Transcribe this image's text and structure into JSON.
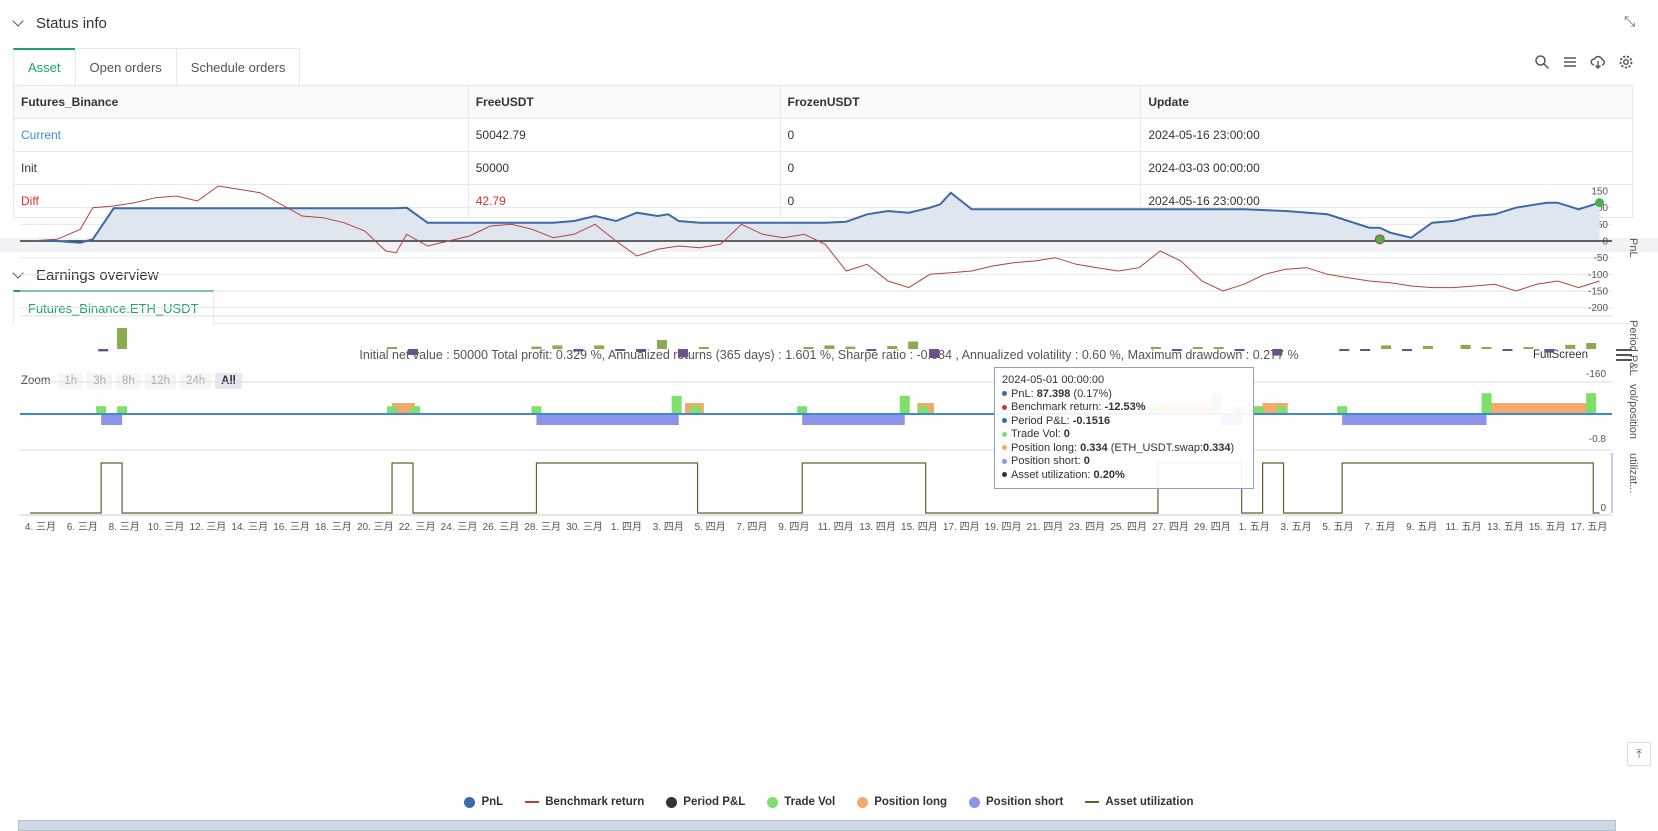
{
  "status": {
    "title": "Status info",
    "tabs": [
      "Asset",
      "Open orders",
      "Schedule orders"
    ],
    "table": {
      "headers": [
        "Futures_Binance",
        "FreeUSDT",
        "FrozenUSDT",
        "Update"
      ],
      "rows": [
        [
          "Current",
          "50042.79",
          "0",
          "2024-05-16 23:00:00"
        ],
        [
          "Init",
          "50000",
          "0",
          "2024-03-03 00:00:00"
        ],
        [
          "Diff",
          "42.79",
          "0",
          "2024-05-16 23:00:00"
        ]
      ]
    }
  },
  "earnings": {
    "title": "Earnings overview",
    "tab": "Futures_Binance.ETH_USDT",
    "summary": "Initial net value : 50000 Total profit: 0.329 %, Annualized returns (365 days) : 1.601 %, Sharpe ratio : -0.084 , Annualized volatility : 0.60 %, Maximum drawdown : 0.277 %",
    "fullscreen": "FullScreen",
    "zoom": {
      "label": "Zoom",
      "options": [
        "1h",
        "3h",
        "8h",
        "12h",
        "24h",
        "All"
      ],
      "selected": "All"
    },
    "tooltip": {
      "date": "2024-05-01 00:00:00",
      "pnl_label": "PnL: ",
      "pnl_value": "87.398",
      "pnl_extra": " (0.17%)",
      "bench_label": "Benchmark return: ",
      "bench_value": "-12.53%",
      "period_label": "Period P&L: ",
      "period_value": "-0.1516",
      "vol_label": "Trade Vol: ",
      "vol_value": "0",
      "long_label": "Position long: ",
      "long_value": "0.334",
      "long_extra": " (ETH_USDT.swap:",
      "long_extra_value": "0.334",
      "long_close": ")",
      "short_label": "Position short: ",
      "short_value": "0",
      "util_label": "Asset utilization: ",
      "util_value": "0.20%"
    },
    "legend": [
      "PnL",
      "Benchmark return",
      "Period P&L",
      "Trade Vol",
      "Position long",
      "Position short",
      "Asset utilization"
    ]
  },
  "colors": {
    "pnl": "#3c6aa6",
    "benchmark": "#b5433c",
    "period": "#333333",
    "period_pos": "#8aaa4f",
    "period_neg": "#6d4f8a",
    "vol": "#7ee06a",
    "long": "#f4a86b",
    "short": "#8e93ea",
    "util": "#6b5a2a",
    "accent": "#1aa36f"
  },
  "chart_data": {
    "type": "line",
    "x_ticks": [
      "4. 三月",
      "6. 三月",
      "8. 三月",
      "10. 三月",
      "12. 三月",
      "14. 三月",
      "16. 三月",
      "18. 三月",
      "20. 三月",
      "22. 三月",
      "24. 三月",
      "26. 三月",
      "28. 三月",
      "30. 三月",
      "1. 四月",
      "3. 四月",
      "5. 四月",
      "7. 四月",
      "9. 四月",
      "11. 四月",
      "13. 四月",
      "15. 四月",
      "17. 四月",
      "19. 四月",
      "21. 四月",
      "23. 四月",
      "25. 四月",
      "27. 四月",
      "29. 四月",
      "1. 五月",
      "3. 五月",
      "5. 五月",
      "7. 五月",
      "9. 五月",
      "11. 五月",
      "13. 五月",
      "15. 五月",
      "17. 五月"
    ],
    "pnl_axis": {
      "ticks": [
        "150",
        "100",
        "50",
        "0",
        "-50",
        "-100",
        "-150",
        "-200"
      ],
      "label": "PnL"
    },
    "period_axis": {
      "label": "Period P&L",
      "tick": "-160"
    },
    "vol_axis": {
      "label": "vol/position",
      "tick": "-0.8"
    },
    "util_axis": {
      "label": "utilizat...",
      "tick": "0"
    },
    "series": [
      {
        "name": "PnL",
        "x": [
          0,
          1.3,
          2.4,
          3.0,
          4.0,
          6,
          8,
          10,
          12,
          14,
          16,
          17,
          17.5,
          18.0,
          19,
          20,
          22,
          24,
          25,
          26,
          27,
          28,
          29,
          30,
          30.5,
          31,
          32,
          34,
          36,
          37,
          38,
          39,
          40,
          41,
          42,
          43,
          43.5,
          44,
          45,
          46,
          48,
          50,
          52,
          54,
          56,
          58,
          60,
          62,
          64,
          64.5,
          65,
          66,
          67,
          68,
          69,
          70,
          71,
          72,
          72.5,
          73,
          74,
          75
        ],
        "y": [
          0,
          0,
          -5,
          5,
          98,
          98,
          98,
          98,
          98,
          98,
          98,
          98,
          98,
          100,
          55,
          55,
          55,
          55,
          55,
          60,
          75,
          60,
          85,
          75,
          80,
          60,
          55,
          55,
          55,
          55,
          55,
          58,
          80,
          90,
          85,
          100,
          110,
          145,
          95,
          95,
          95,
          95,
          95,
          95,
          95,
          95,
          90,
          80,
          40,
          40,
          25,
          10,
          55,
          60,
          75,
          80,
          100,
          110,
          115,
          115,
          95,
          115
        ]
      },
      {
        "name": "Benchmark return",
        "x": [
          0,
          1.3,
          2.4,
          3.0,
          4.0,
          5,
          6,
          7,
          8,
          9,
          10,
          11,
          12,
          13,
          14,
          15,
          16,
          17,
          17.5,
          18,
          19,
          20,
          21,
          22,
          23,
          24,
          25,
          26,
          27,
          28,
          29,
          30,
          31,
          32,
          33,
          34,
          35,
          36,
          37,
          38,
          39,
          40,
          41,
          42,
          43,
          44,
          45,
          46,
          47,
          48,
          49,
          50,
          51,
          52,
          53,
          54,
          55,
          56,
          57,
          58,
          59,
          60,
          61,
          62,
          63,
          64,
          65,
          66,
          67,
          68,
          69,
          70,
          71,
          72,
          73,
          74,
          75
        ],
        "y": [
          0,
          5,
          35,
          100,
          105,
          115,
          130,
          135,
          120,
          165,
          155,
          145,
          110,
          75,
          70,
          55,
          30,
          -30,
          -35,
          20,
          -15,
          0,
          15,
          45,
          50,
          35,
          10,
          20,
          50,
          0,
          -45,
          -25,
          -15,
          -20,
          -10,
          50,
          20,
          10,
          20,
          -10,
          -90,
          -70,
          -120,
          -140,
          -100,
          -95,
          -90,
          -75,
          -65,
          -60,
          -50,
          -70,
          -80,
          -90,
          -80,
          -30,
          -60,
          -120,
          -150,
          -130,
          -100,
          -85,
          -80,
          -100,
          -110,
          -120,
          -125,
          -135,
          -140,
          -140,
          -135,
          -130,
          -150,
          -130,
          -120,
          -140,
          -120
        ]
      },
      {
        "name": "Period P&L",
        "bars": [
          {
            "x": 3.5,
            "v": -8
          },
          {
            "x": 4.4,
            "v": 70
          },
          {
            "x": 17.3,
            "v": 4
          },
          {
            "x": 18.3,
            "v": -20
          },
          {
            "x": 24.2,
            "v": 8
          },
          {
            "x": 25.2,
            "v": 12
          },
          {
            "x": 26.2,
            "v": -8
          },
          {
            "x": 27.2,
            "v": 12
          },
          {
            "x": 28.2,
            "v": -6
          },
          {
            "x": 29.2,
            "v": -10
          },
          {
            "x": 30.2,
            "v": 30
          },
          {
            "x": 31.2,
            "v": -28
          },
          {
            "x": 32.2,
            "v": 3
          },
          {
            "x": 37.2,
            "v": 3
          },
          {
            "x": 38.2,
            "v": 12
          },
          {
            "x": 39.2,
            "v": 8
          },
          {
            "x": 40.2,
            "v": -5
          },
          {
            "x": 41.2,
            "v": 10
          },
          {
            "x": 42.2,
            "v": 25
          },
          {
            "x": 43.2,
            "v": -30
          },
          {
            "x": 53.8,
            "v": 6
          },
          {
            "x": 54.8,
            "v": -6
          },
          {
            "x": 55.8,
            "v": 6
          },
          {
            "x": 56.8,
            "v": 3
          },
          {
            "x": 57.8,
            "v": -6
          },
          {
            "x": 59.6,
            "v": -22
          },
          {
            "x": 62.8,
            "v": -3
          },
          {
            "x": 63.8,
            "v": -5
          },
          {
            "x": 64.8,
            "v": 12
          },
          {
            "x": 65.8,
            "v": -4
          },
          {
            "x": 66.8,
            "v": 10
          },
          {
            "x": 68.6,
            "v": 14
          },
          {
            "x": 69.6,
            "v": 6
          },
          {
            "x": 70.6,
            "v": -3
          },
          {
            "x": 71.6,
            "v": 3
          },
          {
            "x": 72.6,
            "v": -12
          },
          {
            "x": 73.6,
            "v": 14
          },
          {
            "x": 74.6,
            "v": 20
          }
        ]
      },
      {
        "name": "Trade Vol",
        "bars": [
          {
            "x": 3.4,
            "v": 0.3
          },
          {
            "x": 4.4,
            "v": 0.3
          },
          {
            "x": 17.3,
            "v": 0.3
          },
          {
            "x": 18.4,
            "v": 0.3
          },
          {
            "x": 24.2,
            "v": 0.3
          },
          {
            "x": 30.9,
            "v": 0.7
          },
          {
            "x": 31.8,
            "v": 0.3
          },
          {
            "x": 36.9,
            "v": 0.3
          },
          {
            "x": 41.8,
            "v": 0.7
          },
          {
            "x": 42.7,
            "v": 0.3
          },
          {
            "x": 53.7,
            "v": 0.3
          },
          {
            "x": 56.7,
            "v": 0.8
          },
          {
            "x": 57.8,
            "v": 0.3
          },
          {
            "x": 58.7,
            "v": 0.3
          },
          {
            "x": 59.8,
            "v": 0.3
          },
          {
            "x": 62.7,
            "v": 0.3
          },
          {
            "x": 69.6,
            "v": 0.8
          },
          {
            "x": 74.6,
            "v": 0.8
          }
        ]
      },
      {
        "name": "Position long",
        "ranges": [
          [
            17.3,
            18.4
          ],
          [
            31.3,
            32.2
          ],
          [
            42.4,
            43.2
          ],
          [
            53.9,
            56.9
          ],
          [
            58.9,
            60.1
          ],
          [
            69.8,
            74.6
          ]
        ],
        "value": 0.334
      },
      {
        "name": "Position short",
        "ranges": [
          [
            3.4,
            4.4
          ],
          [
            24.2,
            31.0
          ],
          [
            36.9,
            41.8
          ],
          [
            56.9,
            57.9
          ],
          [
            62.7,
            69.6
          ]
        ],
        "value": -0.334
      },
      {
        "name": "Asset utilization",
        "ranges": [
          [
            3.4,
            4.4
          ],
          [
            17.3,
            18.3
          ],
          [
            24.2,
            31.9
          ],
          [
            36.9,
            42.8
          ],
          [
            53.9,
            57.9
          ],
          [
            58.9,
            59.9
          ],
          [
            62.7,
            74.7
          ]
        ],
        "value": 0.2
      }
    ]
  }
}
